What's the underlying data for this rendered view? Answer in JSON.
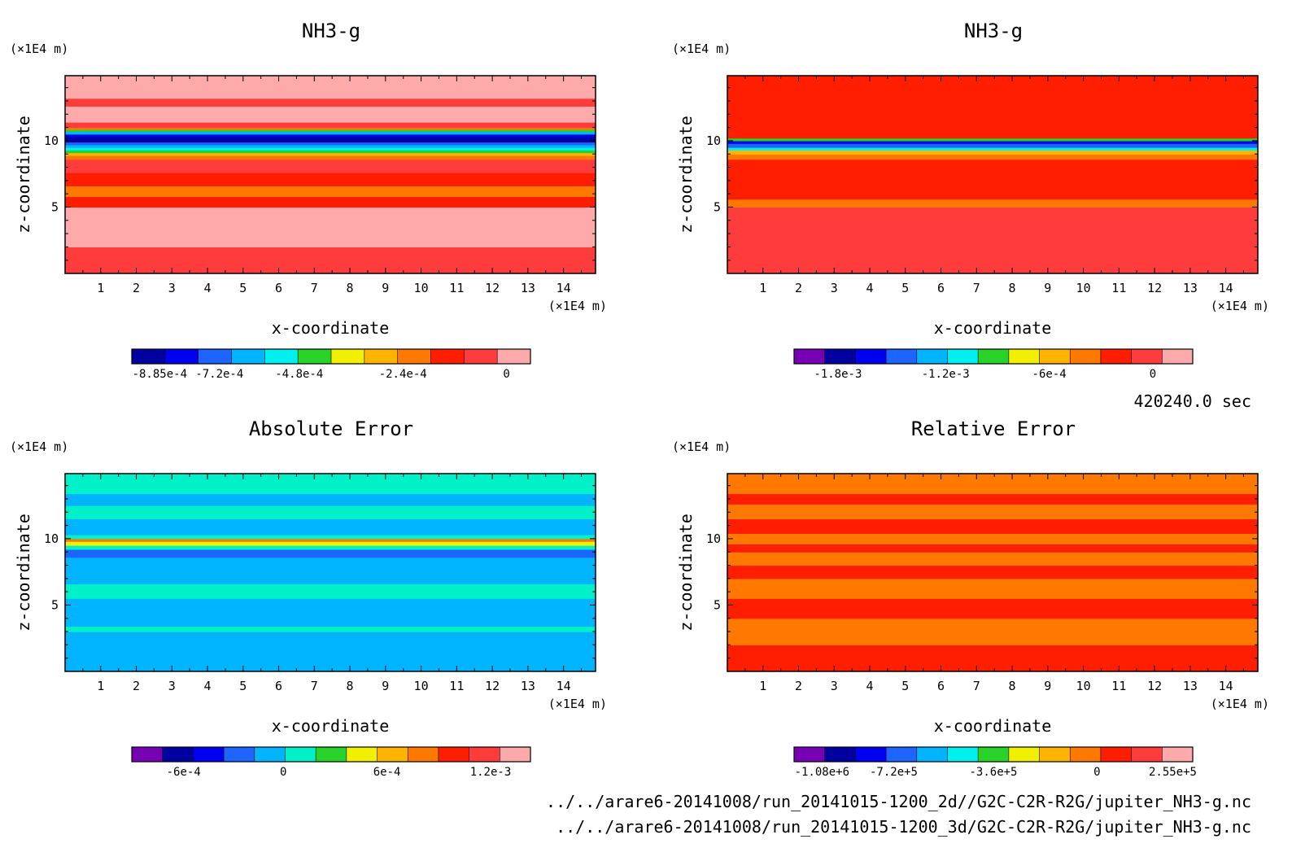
{
  "time_label": "420240.0 sec",
  "footer": {
    "line1": "../../arare6-20141008/run_20141015-1200_2d//G2C-C2R-R2G/jupiter_NH3-g.nc",
    "line2": "../../arare6-20141008/run_20141015-1200_3d/G2C-C2R-R2G/jupiter_NH3-g.nc"
  },
  "chart_data": [
    {
      "type": "heatmap",
      "title": "NH3-g",
      "xlabel": "x-coordinate",
      "ylabel": "z-coordinate",
      "x_unit": "(×1E4 m)",
      "y_unit": "(×1E4 m)",
      "xlim": [
        0,
        14.9
      ],
      "ylim": [
        0,
        14.9
      ],
      "x_ticks": [
        "1",
        "2",
        "3",
        "4",
        "5",
        "6",
        "7",
        "8",
        "9",
        "10",
        "11",
        "12",
        "13",
        "14"
      ],
      "y_ticks": [
        "5",
        "10"
      ],
      "colorbar_labels": [
        "-8.85e-4",
        "-7.2e-4",
        "-4.8e-4",
        "-2.4e-4",
        "0"
      ],
      "colorbar_colors": [
        "#0000a0",
        "#0000f0",
        "#1e64ff",
        "#00b4ff",
        "#00f0f0",
        "#28d228",
        "#f0f000",
        "#ffb400",
        "#ff7800",
        "#ff1e00",
        "#ff3c3c",
        "#ffaaaa"
      ],
      "bands": [
        {
          "from": 0.0,
          "to": 2.0,
          "color": "#ff3c3c"
        },
        {
          "from": 2.0,
          "to": 5.0,
          "color": "#ffaaaa"
        },
        {
          "from": 5.0,
          "to": 5.8,
          "color": "#ff1e00"
        },
        {
          "from": 5.8,
          "to": 6.6,
          "color": "#ff7800"
        },
        {
          "from": 6.6,
          "to": 7.6,
          "color": "#ff1e00"
        },
        {
          "from": 7.6,
          "to": 8.6,
          "color": "#ff3c3c"
        },
        {
          "from": 8.6,
          "to": 8.9,
          "color": "#ff7800"
        },
        {
          "from": 8.9,
          "to": 9.1,
          "color": "#ffb400"
        },
        {
          "from": 9.1,
          "to": 9.3,
          "color": "#28d228"
        },
        {
          "from": 9.3,
          "to": 9.5,
          "color": "#00f0f0"
        },
        {
          "from": 9.5,
          "to": 9.7,
          "color": "#00b4ff"
        },
        {
          "from": 9.7,
          "to": 9.9,
          "color": "#1e64ff"
        },
        {
          "from": 9.9,
          "to": 10.3,
          "color": "#0000a0"
        },
        {
          "from": 10.3,
          "to": 10.5,
          "color": "#0000f0"
        },
        {
          "from": 10.5,
          "to": 10.7,
          "color": "#00b4ff"
        },
        {
          "from": 10.7,
          "to": 10.85,
          "color": "#28d228"
        },
        {
          "from": 10.85,
          "to": 11.0,
          "color": "#ff7800"
        },
        {
          "from": 11.0,
          "to": 11.4,
          "color": "#ff3c3c"
        },
        {
          "from": 11.4,
          "to": 12.6,
          "color": "#ffaaaa"
        },
        {
          "from": 12.6,
          "to": 13.2,
          "color": "#ff3c3c"
        },
        {
          "from": 13.2,
          "to": 14.9,
          "color": "#ffaaaa"
        }
      ]
    },
    {
      "type": "heatmap",
      "title": "NH3-g",
      "xlabel": "x-coordinate",
      "ylabel": "z-coordinate",
      "x_unit": "(×1E4 m)",
      "y_unit": "(×1E4 m)",
      "xlim": [
        0,
        14.9
      ],
      "ylim": [
        0,
        14.9
      ],
      "x_ticks": [
        "1",
        "2",
        "3",
        "4",
        "5",
        "6",
        "7",
        "8",
        "9",
        "10",
        "11",
        "12",
        "13",
        "14"
      ],
      "y_ticks": [
        "5",
        "10"
      ],
      "colorbar_labels": [
        "-1.8e-3",
        "-1.2e-3",
        "-6e-4",
        "0"
      ],
      "colorbar_colors": [
        "#7800b4",
        "#0000a0",
        "#0000f0",
        "#1e64ff",
        "#00b4ff",
        "#00f0f0",
        "#28d228",
        "#f0f000",
        "#ffb400",
        "#ff7800",
        "#ff1e00",
        "#ff3c3c",
        "#ffaaaa"
      ],
      "bands": [
        {
          "from": 0.0,
          "to": 5.0,
          "color": "#ff3c3c"
        },
        {
          "from": 5.0,
          "to": 5.6,
          "color": "#ff7800"
        },
        {
          "from": 5.6,
          "to": 8.6,
          "color": "#ff1e00"
        },
        {
          "from": 8.6,
          "to": 9.0,
          "color": "#ff7800"
        },
        {
          "from": 9.0,
          "to": 9.3,
          "color": "#ffb400"
        },
        {
          "from": 9.3,
          "to": 9.5,
          "color": "#00f0f0"
        },
        {
          "from": 9.5,
          "to": 9.8,
          "color": "#1e64ff"
        },
        {
          "from": 9.8,
          "to": 10.0,
          "color": "#0000f0"
        },
        {
          "from": 10.0,
          "to": 10.2,
          "color": "#28d228"
        },
        {
          "from": 10.2,
          "to": 14.9,
          "color": "#ff1e00"
        }
      ]
    },
    {
      "type": "heatmap",
      "title": "Absolute Error",
      "xlabel": "x-coordinate",
      "ylabel": "z-coordinate",
      "x_unit": "(×1E4 m)",
      "y_unit": "(×1E4 m)",
      "xlim": [
        0,
        14.9
      ],
      "ylim": [
        0,
        14.9
      ],
      "x_ticks": [
        "1",
        "2",
        "3",
        "4",
        "5",
        "6",
        "7",
        "8",
        "9",
        "10",
        "11",
        "12",
        "13",
        "14"
      ],
      "y_ticks": [
        "5",
        "10"
      ],
      "colorbar_labels": [
        "-6e-4",
        "0",
        "6e-4",
        "1.2e-3"
      ],
      "colorbar_colors": [
        "#7800b4",
        "#0000a0",
        "#0000f0",
        "#1e64ff",
        "#00b4ff",
        "#00f0c8",
        "#28d228",
        "#f0f000",
        "#ffb400",
        "#ff7800",
        "#ff1e00",
        "#ff3c3c",
        "#ffaaaa"
      ],
      "bands": [
        {
          "from": 0.0,
          "to": 3.0,
          "color": "#00b4ff"
        },
        {
          "from": 3.0,
          "to": 3.4,
          "color": "#00f0c8"
        },
        {
          "from": 3.4,
          "to": 5.5,
          "color": "#00b4ff"
        },
        {
          "from": 5.5,
          "to": 6.6,
          "color": "#00f0c8"
        },
        {
          "from": 6.6,
          "to": 8.6,
          "color": "#00b4ff"
        },
        {
          "from": 8.6,
          "to": 9.2,
          "color": "#1e64ff"
        },
        {
          "from": 9.2,
          "to": 9.5,
          "color": "#00f0c8"
        },
        {
          "from": 9.5,
          "to": 9.8,
          "color": "#f0f000"
        },
        {
          "from": 9.8,
          "to": 10.0,
          "color": "#ff7800"
        },
        {
          "from": 10.0,
          "to": 10.3,
          "color": "#00f0c8"
        },
        {
          "from": 10.3,
          "to": 11.5,
          "color": "#00b4ff"
        },
        {
          "from": 11.5,
          "to": 12.5,
          "color": "#00f0c8"
        },
        {
          "from": 12.5,
          "to": 13.4,
          "color": "#00b4ff"
        },
        {
          "from": 13.4,
          "to": 14.9,
          "color": "#00f0c8"
        }
      ]
    },
    {
      "type": "heatmap",
      "title": "Relative Error",
      "xlabel": "x-coordinate",
      "ylabel": "z-coordinate",
      "x_unit": "(×1E4 m)",
      "y_unit": "(×1E4 m)",
      "xlim": [
        0,
        14.9
      ],
      "ylim": [
        0,
        14.9
      ],
      "x_ticks": [
        "1",
        "2",
        "3",
        "4",
        "5",
        "6",
        "7",
        "8",
        "9",
        "10",
        "11",
        "12",
        "13",
        "14"
      ],
      "y_ticks": [
        "5",
        "10"
      ],
      "colorbar_labels": [
        "-1.08e+6",
        "-7.2e+5",
        "-3.6e+5",
        "0",
        "2.55e+5"
      ],
      "colorbar_colors": [
        "#7800b4",
        "#0000a0",
        "#0000f0",
        "#1e64ff",
        "#00b4ff",
        "#00f0f0",
        "#28d228",
        "#f0f000",
        "#ffb400",
        "#ff7800",
        "#ff1e00",
        "#ff3c3c",
        "#ffaaaa"
      ],
      "bands": [
        {
          "from": 0.0,
          "to": 2.0,
          "color": "#ff1e00"
        },
        {
          "from": 2.0,
          "to": 4.0,
          "color": "#ff7800"
        },
        {
          "from": 4.0,
          "to": 5.5,
          "color": "#ff1e00"
        },
        {
          "from": 5.5,
          "to": 7.0,
          "color": "#ff7800"
        },
        {
          "from": 7.0,
          "to": 8.0,
          "color": "#ff1e00"
        },
        {
          "from": 8.0,
          "to": 9.0,
          "color": "#ff7800"
        },
        {
          "from": 9.0,
          "to": 9.6,
          "color": "#ff1e00"
        },
        {
          "from": 9.6,
          "to": 10.4,
          "color": "#ff7800"
        },
        {
          "from": 10.4,
          "to": 11.5,
          "color": "#ff1e00"
        },
        {
          "from": 11.5,
          "to": 12.6,
          "color": "#ff7800"
        },
        {
          "from": 12.6,
          "to": 13.4,
          "color": "#ff1e00"
        },
        {
          "from": 13.4,
          "to": 14.9,
          "color": "#ff7800"
        }
      ]
    }
  ]
}
